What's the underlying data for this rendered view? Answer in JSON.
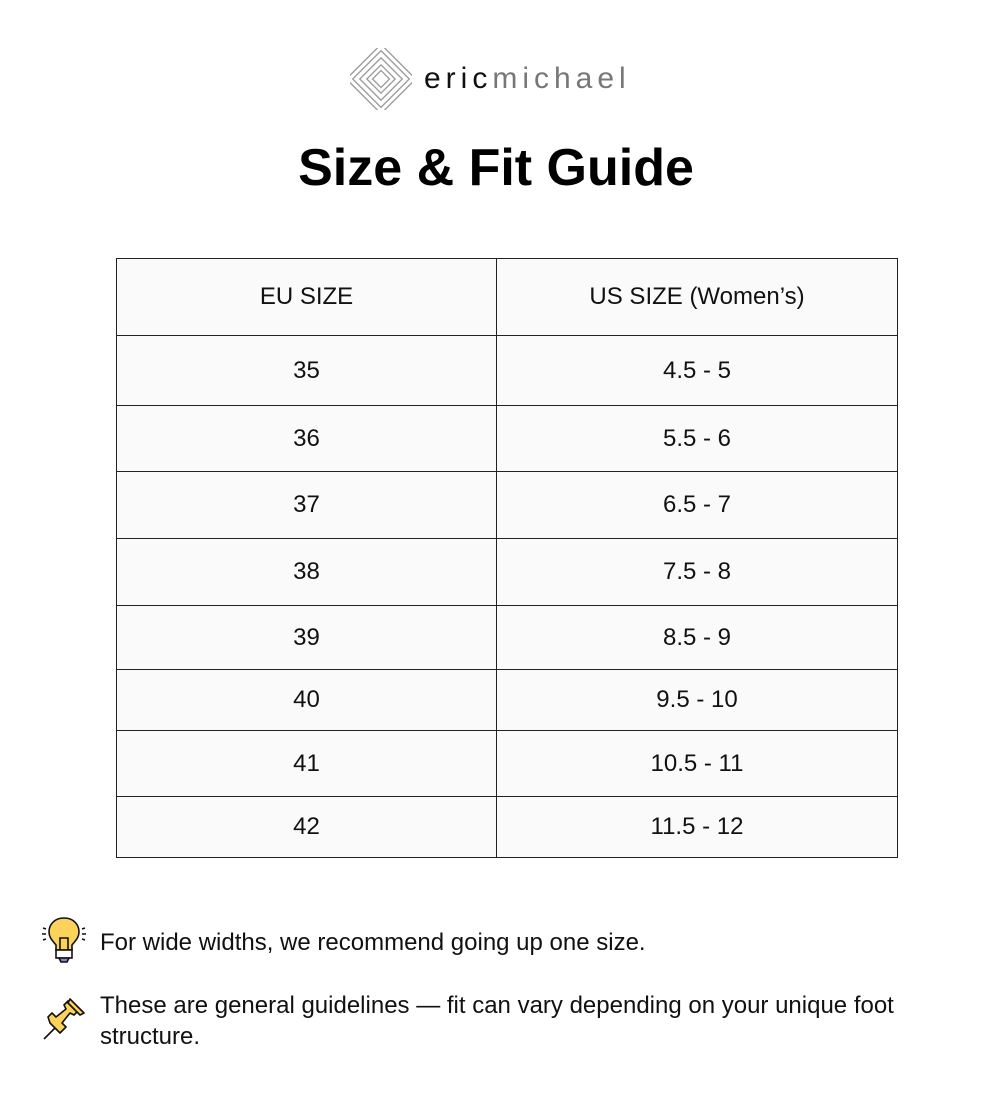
{
  "brand": {
    "name_part1": "eric",
    "name_part2": "michael"
  },
  "title": "Size & Fit Guide",
  "table": {
    "headers": [
      "EU SIZE",
      "US SIZE (Women’s)"
    ],
    "rows": [
      {
        "eu": "35",
        "us": "4.5 - 5"
      },
      {
        "eu": "36",
        "us": "5.5 - 6"
      },
      {
        "eu": "37",
        "us": "6.5 - 7"
      },
      {
        "eu": "38",
        "us": "7.5 - 8"
      },
      {
        "eu": "39",
        "us": "8.5 - 9"
      },
      {
        "eu": "40",
        "us": "9.5 - 10"
      },
      {
        "eu": "41",
        "us": "10.5 - 11"
      },
      {
        "eu": "42",
        "us": "11.5 - 12"
      }
    ]
  },
  "notes": [
    {
      "icon": "lightbulb-icon",
      "text": "For wide widths, we recommend going up one size."
    },
    {
      "icon": "pushpin-icon",
      "text": "These are general guidelines — fit can vary depending on your unique foot structure."
    }
  ],
  "colors": {
    "icon_yellow": "#fcd25a",
    "border": "#222222",
    "cell_bg": "#fafafa"
  }
}
